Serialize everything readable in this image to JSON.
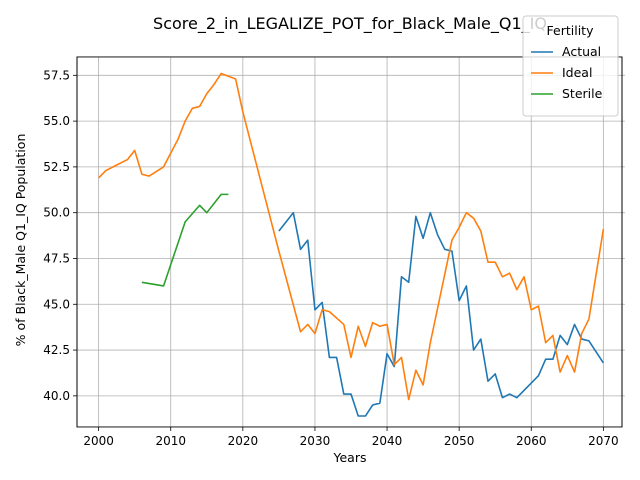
{
  "chart_data": {
    "type": "line",
    "title": "Score_2_in_LEGALIZE_POT_for_Black_Male_Q1_IQ",
    "xlabel": "Years",
    "ylabel": "% of Black_Male Q1_IQ Population",
    "xlim": [
      1997,
      2073
    ],
    "ylim": [
      38.3,
      58.5
    ],
    "xticks": [
      2000,
      2010,
      2020,
      2030,
      2040,
      2050,
      2060,
      2070
    ],
    "xtick_labels": [
      "2000",
      "2010",
      "2020",
      "2030",
      "2040",
      "2050",
      "2060",
      "2070"
    ],
    "yticks": [
      40.0,
      42.5,
      45.0,
      47.5,
      50.0,
      52.5,
      55.0,
      57.5
    ],
    "ytick_labels": [
      "40.0",
      "42.5",
      "45.0",
      "47.5",
      "50.0",
      "52.5",
      "55.0",
      "57.5"
    ],
    "grid": true,
    "legend": {
      "title": "Fertility",
      "placement": "top-right"
    },
    "series": [
      {
        "name": "Actual",
        "color": "#1f77b4",
        "points": [
          [
            2025,
            49.0
          ],
          [
            2026,
            49.5
          ],
          [
            2027,
            50.0
          ],
          [
            2028,
            48.0
          ],
          [
            2029,
            48.5
          ],
          [
            2030,
            44.7
          ],
          [
            2031,
            45.1
          ],
          [
            2032,
            42.1
          ],
          [
            2033,
            42.1
          ],
          [
            2034,
            40.1
          ],
          [
            2035,
            40.1
          ],
          [
            2036,
            38.9
          ],
          [
            2037,
            38.9
          ],
          [
            2038,
            39.5
          ],
          [
            2039,
            39.6
          ],
          [
            2040,
            42.3
          ],
          [
            2041,
            41.6
          ],
          [
            2042,
            46.5
          ],
          [
            2043,
            46.2
          ],
          [
            2044,
            49.8
          ],
          [
            2045,
            48.6
          ],
          [
            2046,
            50.0
          ],
          [
            2047,
            48.8
          ],
          [
            2048,
            48.0
          ],
          [
            2049,
            47.9
          ],
          [
            2050,
            45.2
          ],
          [
            2051,
            46.0
          ],
          [
            2052,
            42.5
          ],
          [
            2053,
            43.1
          ],
          [
            2054,
            40.8
          ],
          [
            2055,
            41.2
          ],
          [
            2056,
            39.9
          ],
          [
            2057,
            40.1
          ],
          [
            2058,
            39.9
          ],
          [
            2060,
            40.7
          ],
          [
            2061,
            41.1
          ],
          [
            2062,
            42.0
          ],
          [
            2063,
            42.0
          ],
          [
            2064,
            43.3
          ],
          [
            2065,
            42.8
          ],
          [
            2066,
            43.9
          ],
          [
            2067,
            43.1
          ],
          [
            2068,
            43.0
          ],
          [
            2070,
            41.8
          ]
        ]
      },
      {
        "name": "Ideal",
        "color": "#ff7f0e",
        "points": [
          [
            2000,
            51.9
          ],
          [
            2001,
            52.3
          ],
          [
            2002,
            52.5
          ],
          [
            2004,
            52.9
          ],
          [
            2005,
            53.4
          ],
          [
            2006,
            52.1
          ],
          [
            2007,
            52.0
          ],
          [
            2009,
            52.5
          ],
          [
            2011,
            54.0
          ],
          [
            2012,
            55.0
          ],
          [
            2013,
            55.7
          ],
          [
            2014,
            55.8
          ],
          [
            2015,
            56.5
          ],
          [
            2016,
            57.0
          ],
          [
            2017,
            57.6
          ],
          [
            2019,
            57.3
          ],
          [
            2020,
            55.5
          ],
          [
            2025,
            47.9
          ],
          [
            2028,
            43.5
          ],
          [
            2029,
            43.9
          ],
          [
            2030,
            43.4
          ],
          [
            2031,
            44.7
          ],
          [
            2032,
            44.6
          ],
          [
            2034,
            43.9
          ],
          [
            2035,
            42.1
          ],
          [
            2036,
            43.8
          ],
          [
            2037,
            42.7
          ],
          [
            2038,
            44.0
          ],
          [
            2039,
            43.8
          ],
          [
            2040,
            43.9
          ],
          [
            2041,
            41.7
          ],
          [
            2042,
            42.1
          ],
          [
            2043,
            39.8
          ],
          [
            2044,
            41.4
          ],
          [
            2045,
            40.6
          ],
          [
            2046,
            42.9
          ],
          [
            2049,
            48.5
          ],
          [
            2050,
            49.2
          ],
          [
            2051,
            50.0
          ],
          [
            2052,
            49.7
          ],
          [
            2053,
            49.0
          ],
          [
            2054,
            47.3
          ],
          [
            2055,
            47.3
          ],
          [
            2056,
            46.5
          ],
          [
            2057,
            46.7
          ],
          [
            2058,
            45.8
          ],
          [
            2059,
            46.5
          ],
          [
            2060,
            44.7
          ],
          [
            2061,
            44.9
          ],
          [
            2062,
            42.9
          ],
          [
            2063,
            43.3
          ],
          [
            2064,
            41.3
          ],
          [
            2065,
            42.2
          ],
          [
            2066,
            41.3
          ],
          [
            2067,
            43.4
          ],
          [
            2068,
            44.2
          ],
          [
            2070,
            49.1
          ]
        ]
      },
      {
        "name": "Sterile",
        "color": "#2ca02c",
        "points": [
          [
            2006,
            46.2
          ],
          [
            2009,
            46.0
          ],
          [
            2012,
            49.5
          ],
          [
            2014,
            50.4
          ],
          [
            2015,
            50.0
          ],
          [
            2017,
            51.0
          ],
          [
            2018,
            51.0
          ]
        ]
      }
    ]
  }
}
